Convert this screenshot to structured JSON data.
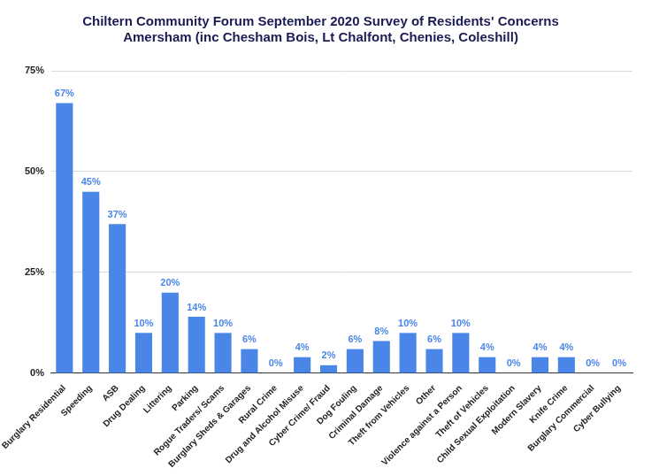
{
  "chart_data": {
    "type": "bar",
    "title": [
      "Chiltern Community Forum September 2020 Survey of Residents' Concerns",
      "Amersham (inc Chesham Bois, Lt Chalfont, Chenies, Coleshill)"
    ],
    "categories": [
      "Burglary Residential",
      "Speeding",
      "ASB",
      "Drug Dealing",
      "Littering",
      "Parking",
      "Rogue Traders/ Scams",
      "Burglary Sheds & Garages",
      "Rural Crime",
      "Drug and Alcohol Misuse",
      "Cyber Crime/ Fraud",
      "Dog Fouling",
      "Criminal Damage",
      "Theft from Vehicles",
      "Other",
      "Violence against a Person",
      "Theft of Vehicles",
      "Child Sexual Exploitation",
      "Modern Slavery",
      "Knife Crime",
      "Burglary Commercial",
      "Cyber Bullying"
    ],
    "values": [
      67,
      45,
      37,
      10,
      20,
      14,
      10,
      6,
      0,
      4,
      2,
      6,
      8,
      10,
      6,
      10,
      4,
      0,
      4,
      4,
      0,
      0
    ],
    "value_labels": [
      "67%",
      "45%",
      "37%",
      "10%",
      "20%",
      "14%",
      "10%",
      "6%",
      "0%",
      "4%",
      "2%",
      "6%",
      "8%",
      "10%",
      "6%",
      "10%",
      "4%",
      "0%",
      "4%",
      "4%",
      "0%",
      "0%"
    ],
    "data_labels": true,
    "color": "#4a86e8",
    "ylim": [
      0,
      75
    ],
    "yticks": [
      {
        "value": 0,
        "label": "0%"
      },
      {
        "value": 25,
        "label": "25%"
      },
      {
        "value": 50,
        "label": "50%"
      },
      {
        "value": 75,
        "label": "75%"
      }
    ],
    "grid": true
  }
}
